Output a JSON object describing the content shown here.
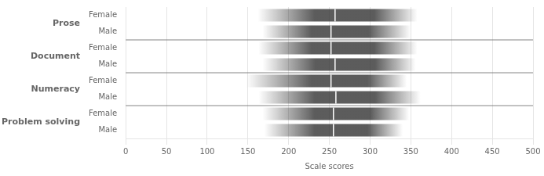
{
  "chart_data": {
    "type": "bar",
    "orientation": "horizontal",
    "xlabel": "Scale scores",
    "categories": [
      "Prose",
      "Document",
      "Numeracy",
      "Problem solving"
    ],
    "series": [
      {
        "name": "Female",
        "values": [
          {
            "min": 162,
            "q1": 232,
            "median": 257,
            "q3": 305,
            "max": 358
          },
          {
            "min": 163,
            "q1": 228,
            "median": 252,
            "q3": 305,
            "max": 358
          },
          {
            "min": 148,
            "q1": 228,
            "median": 252,
            "q3": 297,
            "max": 345
          },
          {
            "min": 168,
            "q1": 232,
            "median": 255,
            "q3": 300,
            "max": 348
          }
        ]
      },
      {
        "name": "Male",
        "values": [
          {
            "min": 168,
            "q1": 228,
            "median": 252,
            "q3": 298,
            "max": 350
          },
          {
            "min": 168,
            "q1": 233,
            "median": 257,
            "q3": 306,
            "max": 356
          },
          {
            "min": 163,
            "q1": 232,
            "median": 258,
            "q3": 306,
            "max": 362
          },
          {
            "min": 170,
            "q1": 232,
            "median": 255,
            "q3": 297,
            "max": 340
          }
        ]
      }
    ],
    "xlim": [
      0,
      500
    ],
    "xticks": [
      0,
      50,
      100,
      150,
      200,
      250,
      300,
      350,
      400,
      450,
      500
    ],
    "grid": true,
    "color": "#333333"
  }
}
